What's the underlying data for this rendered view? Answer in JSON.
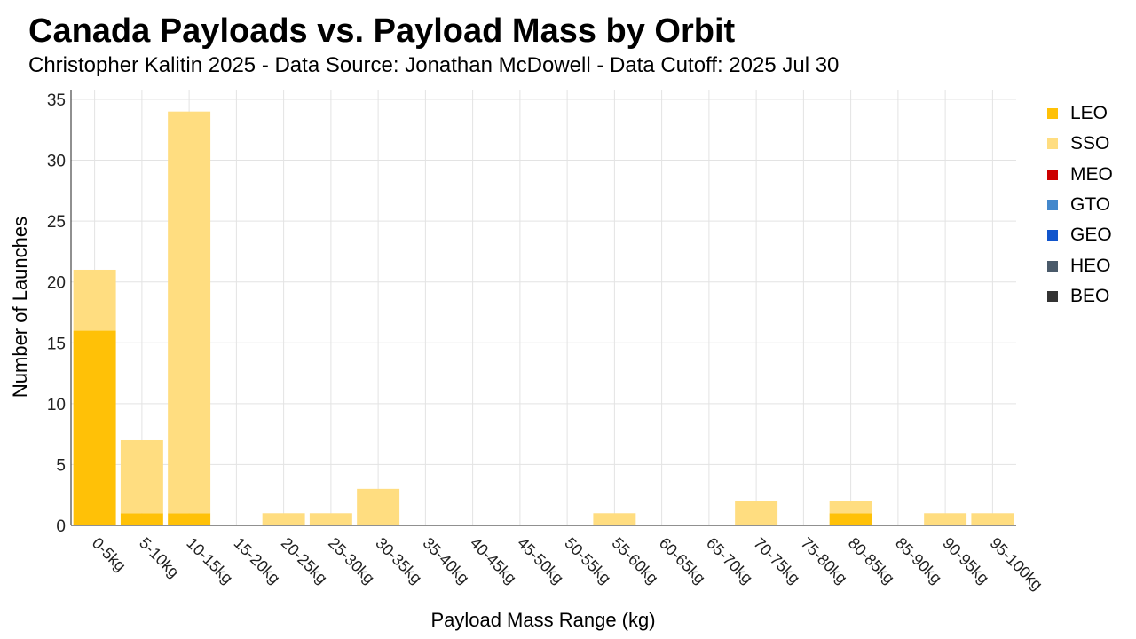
{
  "chart_data": {
    "type": "bar",
    "stacked": true,
    "title": "Canada Payloads vs. Payload Mass by Orbit",
    "subtitle": "Christopher Kalitin 2025 - Data Source: Jonathan McDowell - Data Cutoff: 2025 Jul 30",
    "xlabel": "Payload Mass Range (kg)",
    "ylabel": "Number of Launches",
    "ylim": [
      0,
      35
    ],
    "yticks": [
      0,
      5,
      10,
      15,
      20,
      25,
      30,
      35
    ],
    "grid": true,
    "legend_position": "right",
    "categories": [
      "0-5kg",
      "5-10kg",
      "10-15kg",
      "15-20kg",
      "20-25kg",
      "25-30kg",
      "30-35kg",
      "35-40kg",
      "40-45kg",
      "45-50kg",
      "50-55kg",
      "55-60kg",
      "60-65kg",
      "65-70kg",
      "70-75kg",
      "75-80kg",
      "80-85kg",
      "85-90kg",
      "90-95kg",
      "95-100kg"
    ],
    "series": [
      {
        "name": "LEO",
        "color": "#FFC107",
        "values": [
          16,
          1,
          1,
          0,
          0,
          0,
          0,
          0,
          0,
          0,
          0,
          0,
          0,
          0,
          0,
          0,
          1,
          0,
          0,
          0
        ]
      },
      {
        "name": "SSO",
        "color": "#FFDD80",
        "values": [
          5,
          6,
          33,
          0,
          1,
          1,
          3,
          0,
          0,
          0,
          0,
          1,
          0,
          0,
          2,
          0,
          1,
          0,
          1,
          1
        ]
      },
      {
        "name": "MEO",
        "color": "#CC0000",
        "values": [
          0,
          0,
          0,
          0,
          0,
          0,
          0,
          0,
          0,
          0,
          0,
          0,
          0,
          0,
          0,
          0,
          0,
          0,
          0,
          0
        ]
      },
      {
        "name": "GTO",
        "color": "#4488CC",
        "values": [
          0,
          0,
          0,
          0,
          0,
          0,
          0,
          0,
          0,
          0,
          0,
          0,
          0,
          0,
          0,
          0,
          0,
          0,
          0,
          0
        ]
      },
      {
        "name": "GEO",
        "color": "#1155CC",
        "values": [
          0,
          0,
          0,
          0,
          0,
          0,
          0,
          0,
          0,
          0,
          0,
          0,
          0,
          0,
          0,
          0,
          0,
          0,
          0,
          0
        ]
      },
      {
        "name": "HEO",
        "color": "#4A5A6A",
        "values": [
          0,
          0,
          0,
          0,
          0,
          0,
          0,
          0,
          0,
          0,
          0,
          0,
          0,
          0,
          0,
          0,
          0,
          0,
          0,
          0
        ]
      },
      {
        "name": "BEO",
        "color": "#333333",
        "values": [
          0,
          0,
          0,
          0,
          0,
          0,
          0,
          0,
          0,
          0,
          0,
          0,
          0,
          0,
          0,
          0,
          0,
          0,
          0,
          0
        ]
      }
    ]
  }
}
